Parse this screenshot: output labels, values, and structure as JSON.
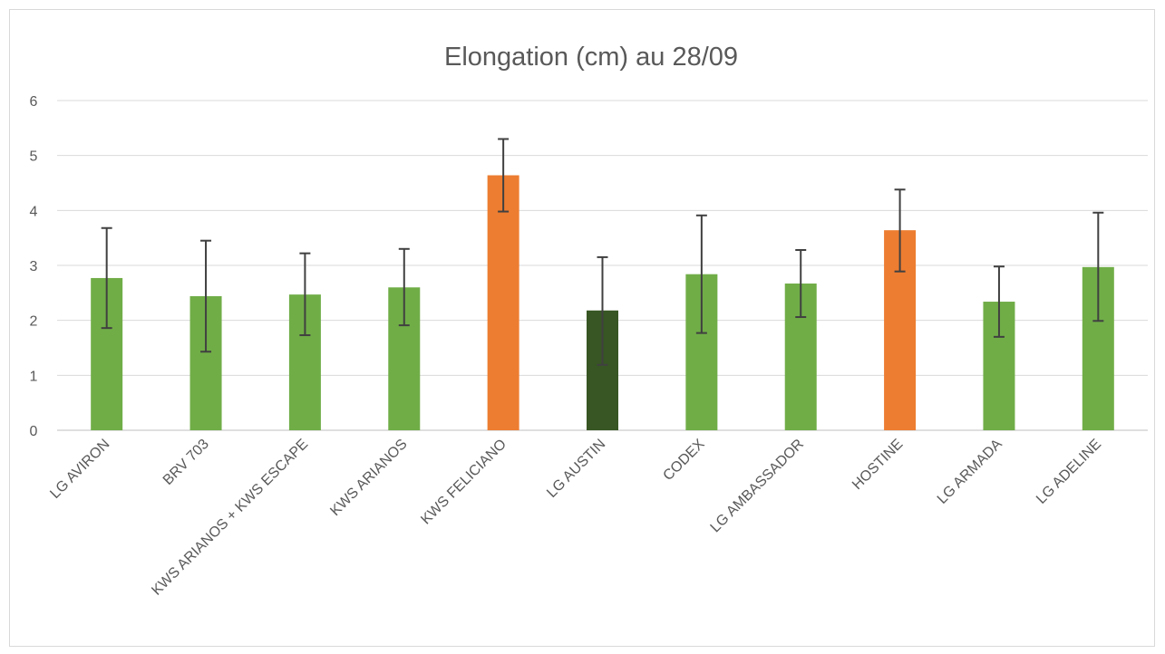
{
  "chart_data": {
    "type": "bar",
    "title": "Elongation (cm) au 28/09",
    "xlabel": "",
    "ylabel": "",
    "ylim": [
      0,
      6
    ],
    "yticks": [
      0,
      1,
      2,
      3,
      4,
      5,
      6
    ],
    "grid": true,
    "legend": "none",
    "categories": [
      "LG AVIRON",
      "BRV 703",
      "KWS ARIANOS + KWS ESCAPE",
      "KWS ARIANOS",
      "KWS FELICIANO",
      "LG AUSTIN",
      "CODEX",
      "LG AMBASSADOR",
      "HOSTINE",
      "LG ARMADA",
      "LG ADELINE"
    ],
    "values": [
      2.77,
      2.44,
      2.47,
      2.6,
      4.64,
      2.18,
      2.84,
      2.67,
      3.64,
      2.34,
      2.97
    ],
    "error_low": [
      1.86,
      1.43,
      1.73,
      1.91,
      3.98,
      1.19,
      1.77,
      2.06,
      2.89,
      1.7,
      1.99
    ],
    "error_high": [
      3.68,
      3.45,
      3.22,
      3.3,
      5.3,
      3.15,
      3.91,
      3.28,
      4.38,
      2.98,
      3.96
    ],
    "bar_colors": [
      "#70ad47",
      "#70ad47",
      "#70ad47",
      "#70ad47",
      "#ed7d31",
      "#375623",
      "#70ad47",
      "#70ad47",
      "#ed7d31",
      "#70ad47",
      "#70ad47"
    ],
    "colors": {
      "grid": "#d9d9d9",
      "axis": "#bfbfbf",
      "error_bar": "#404040",
      "text": "#595959"
    }
  }
}
